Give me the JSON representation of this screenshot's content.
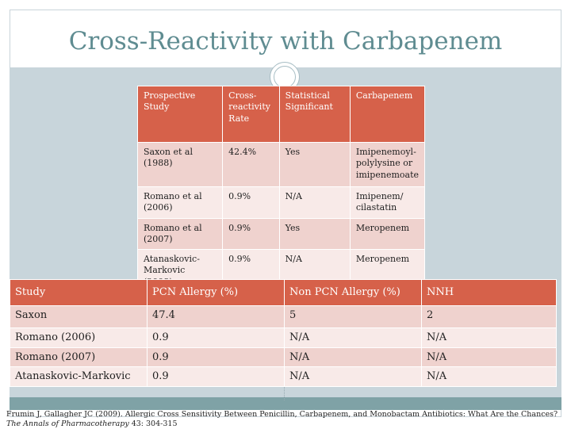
{
  "title": "Cross-Reactivity with Carbapenem",
  "table1": {
    "headers": [
      "Prospective Study",
      "Cross-reactivity Rate",
      "Statistical Significant",
      "Carbapenem"
    ],
    "rows": [
      [
        "Saxon et al (1988)",
        "42.4%",
        "Yes",
        "Imipenemoyl-polylysine or imipenemoate"
      ],
      [
        "Romano et al (2006)",
        "0.9%",
        "N/A",
        "Imipenem/ cilastatin"
      ],
      [
        "Romano et al (2007)",
        "0.9%",
        "Yes",
        "Meropenem"
      ],
      [
        "Atanaskovic-Markovic (2008)",
        "0.9%",
        "N/A",
        "Meropenem"
      ]
    ]
  },
  "table2": {
    "headers": [
      "Study",
      "PCN Allergy (%)",
      "Non PCN Allergy (%)",
      "NNH"
    ],
    "rows": [
      [
        "Saxon",
        "47.4",
        "5",
        "2"
      ],
      [
        "Romano (2006)",
        "0.9",
        "N/A",
        "N/A"
      ],
      [
        "Romano (2007)",
        "0.9",
        "N/A",
        "N/A"
      ],
      [
        "Atanaskovic-Markovic",
        "0.9",
        "N/A",
        "N/A"
      ]
    ]
  },
  "citation": {
    "text": "Frumin J, Gallagher JC (2009). Allergic Cross Sensitivity Between Penicillin, Carbapenem, and Monobactam Antibiotics: What Are the Chances? ",
    "journal": "The Annals of Pharmacotherapy",
    "tail": " 43: 304-315"
  },
  "colors": {
    "title": "#5f8c91",
    "header_fill": "#d6614a",
    "row_odd": "#efd2ce",
    "row_even": "#f8eae8",
    "band": "#c8d5db",
    "band_bottom": "#7fa2a6"
  }
}
